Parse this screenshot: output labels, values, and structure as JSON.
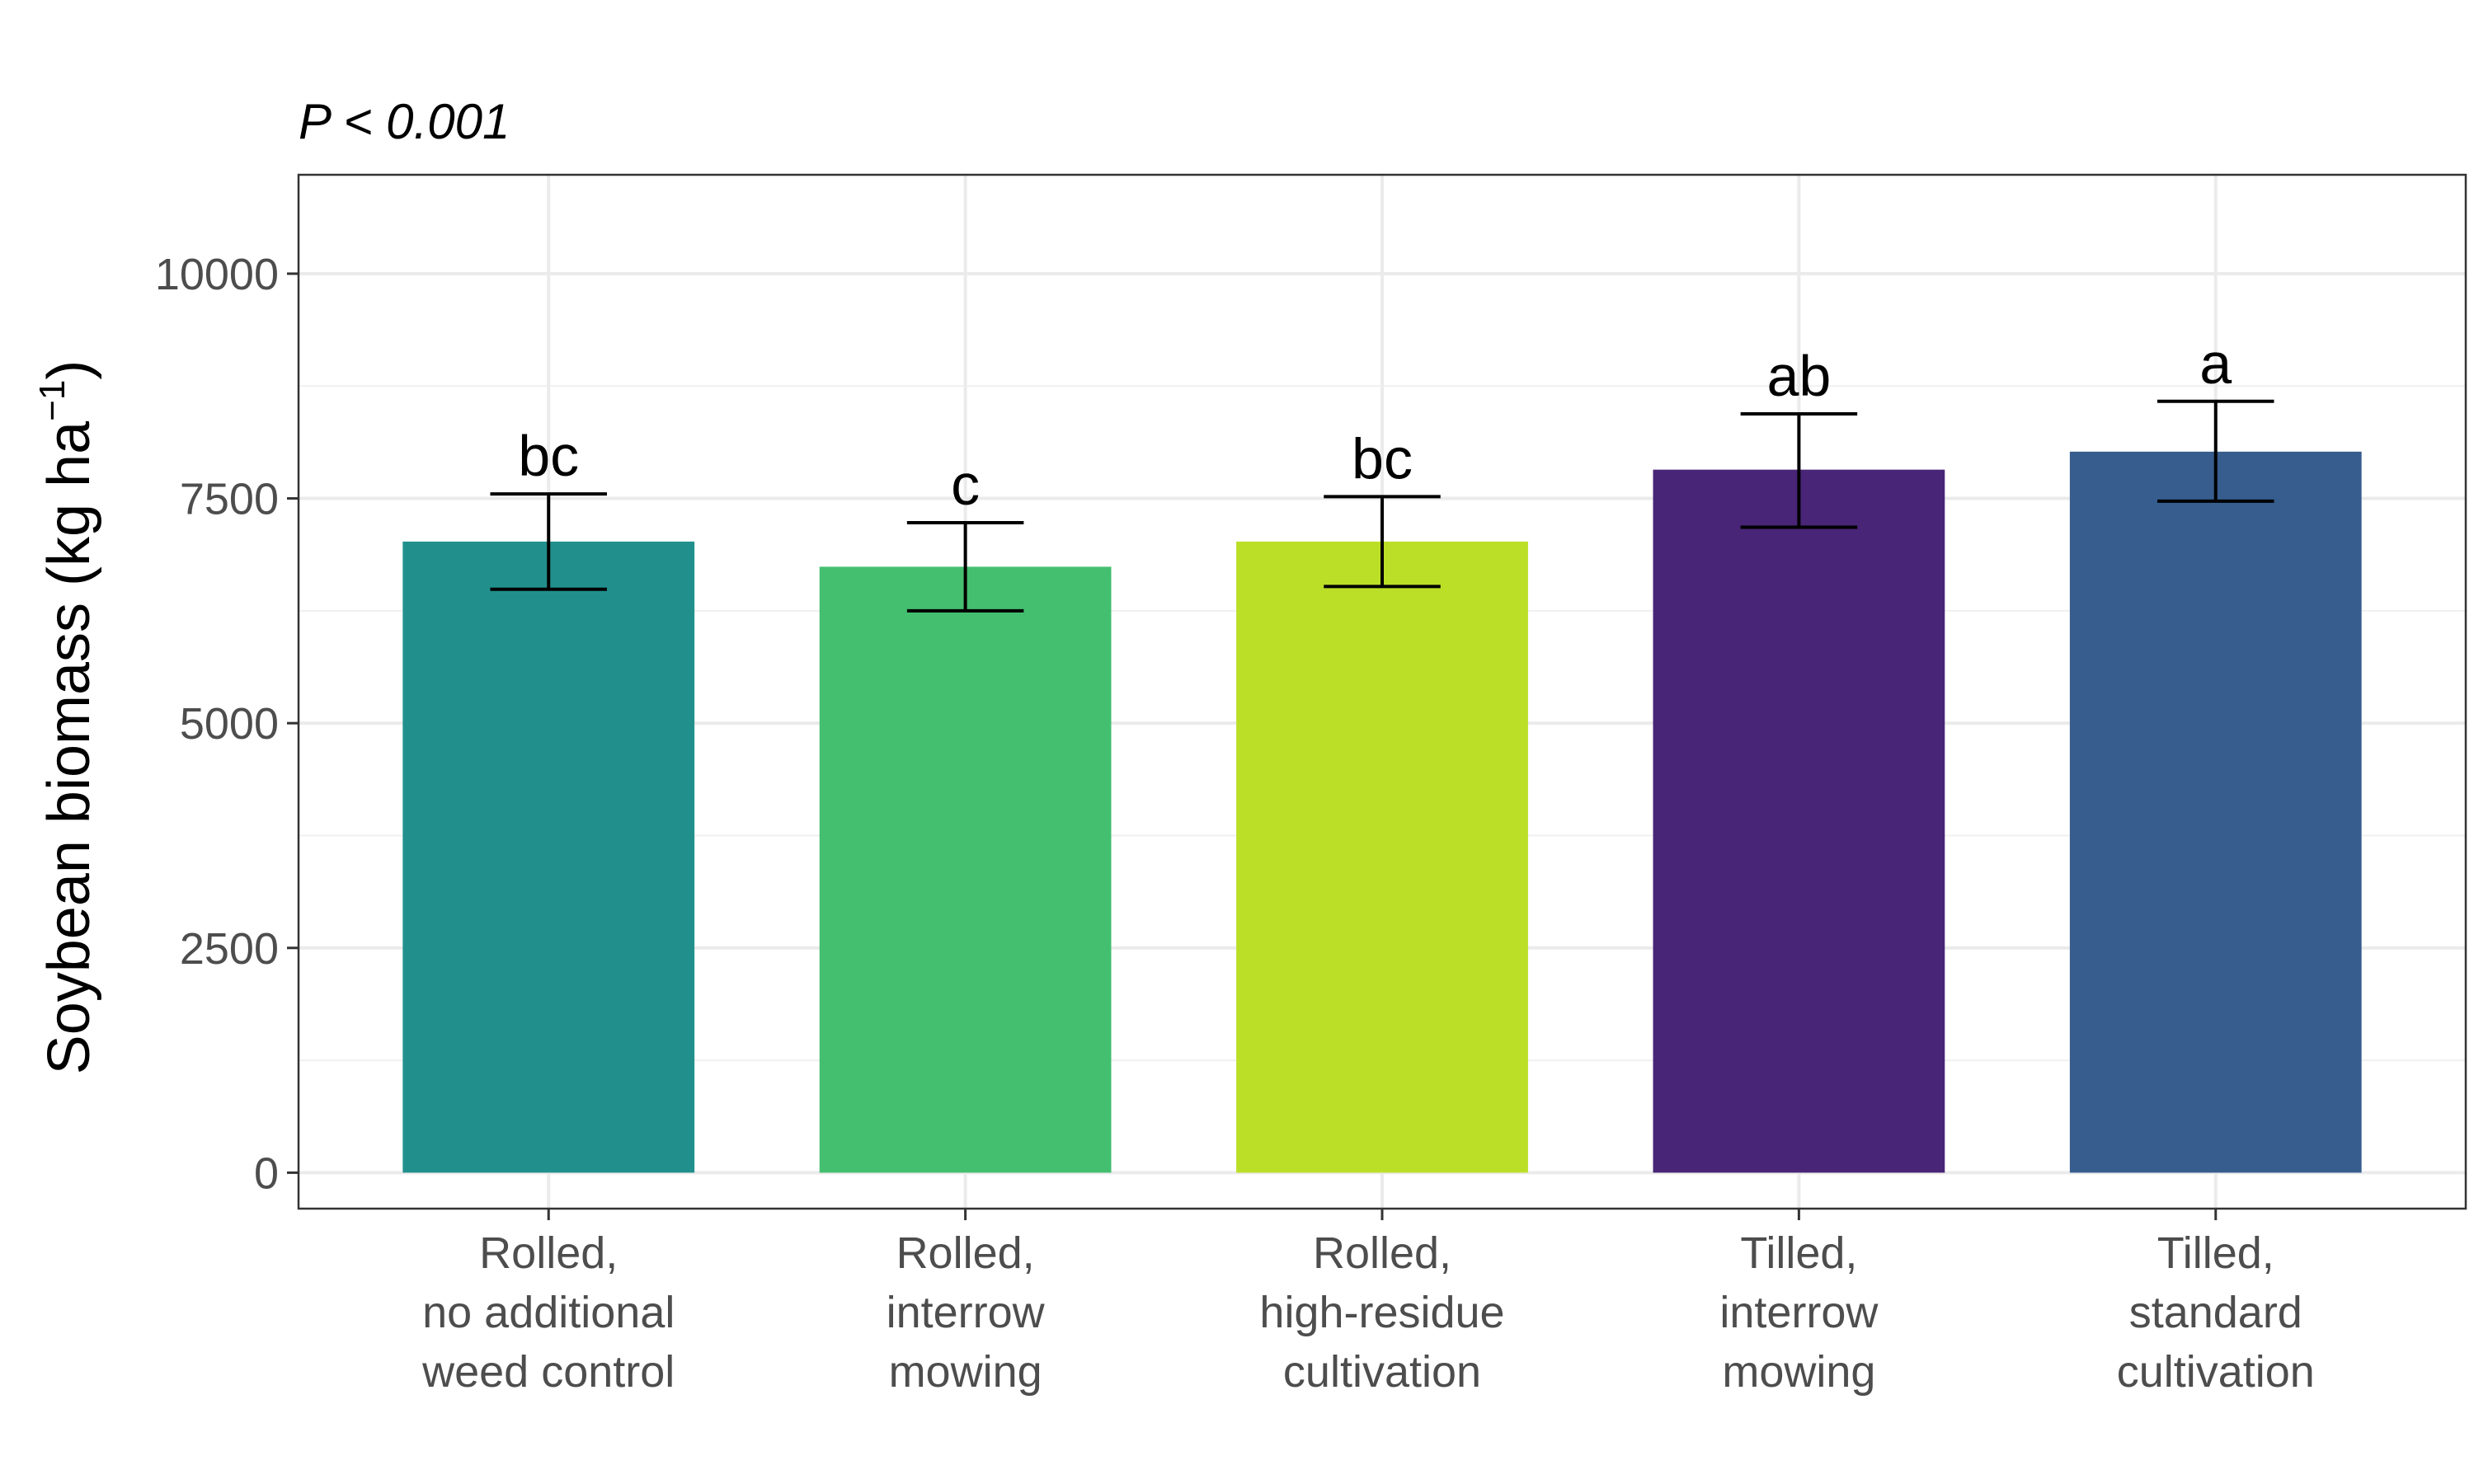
{
  "chart_data": {
    "type": "bar",
    "subtitle": {
      "p": "P",
      "rest": " < 0.001"
    },
    "ylabel": {
      "main": "Soybean biomass (kg ha",
      "sup": "−1",
      "close": ")"
    },
    "xlabel": "",
    "ylim": [
      -400,
      11100
    ],
    "yticks": [
      0,
      2500,
      5000,
      7500,
      10000
    ],
    "grid": true,
    "categories": [
      [
        "Rolled,",
        "no additional",
        "weed control"
      ],
      [
        "Rolled,",
        "interrow",
        "mowing"
      ],
      [
        "Rolled,",
        "high-residue",
        "cultivation"
      ],
      [
        "Tilled,",
        "interrow",
        "mowing"
      ],
      [
        "Tilled,",
        "standard",
        "cultivation"
      ]
    ],
    "values": [
      7020,
      6740,
      7020,
      7820,
      8020
    ],
    "error_low": [
      6490,
      6250,
      6520,
      7180,
      7470
    ],
    "error_high": [
      7550,
      7230,
      7520,
      8440,
      8580
    ],
    "letters": [
      "bc",
      "c",
      "bc",
      "ab",
      "a"
    ],
    "colors": [
      "#21908C",
      "#44BF70",
      "#BBDF27",
      "#482576",
      "#365D8D"
    ]
  }
}
